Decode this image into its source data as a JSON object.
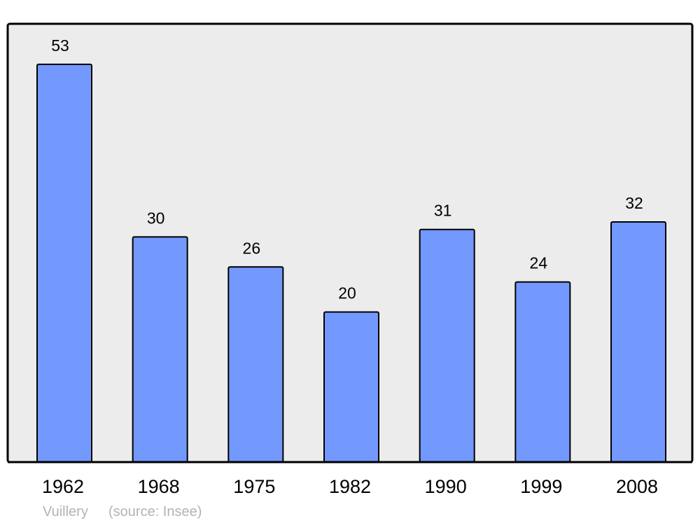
{
  "chart_data": {
    "type": "bar",
    "categories": [
      "1962",
      "1968",
      "1975",
      "1982",
      "1990",
      "1999",
      "2008"
    ],
    "values": [
      53,
      30,
      26,
      20,
      31,
      24,
      32
    ],
    "title": "",
    "xlabel": "",
    "ylabel": "",
    "ylim": [
      0,
      58.4
    ],
    "grid": false,
    "data_labels": true,
    "colors": {
      "bar": "#7399ff",
      "plot_background": "#ececec",
      "frame": "#000000"
    }
  },
  "footer": {
    "place": "Vuillery",
    "source": "(source: Insee)"
  }
}
